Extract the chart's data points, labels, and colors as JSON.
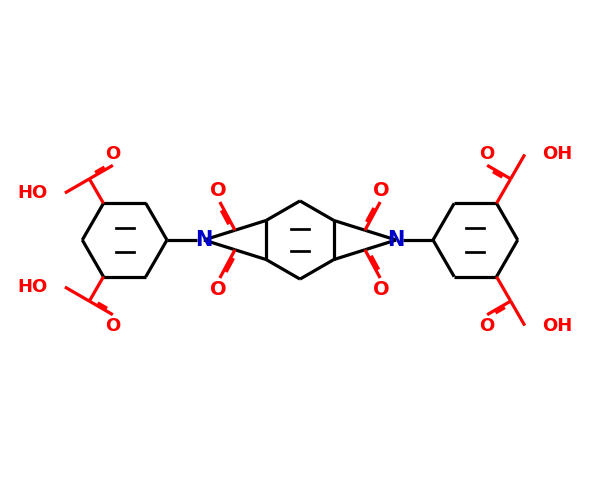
{
  "bg_color": "#ffffff",
  "bond_color": "#000000",
  "red_color": "#ff0000",
  "blue_color": "#0000cc",
  "lw": 2.3,
  "figsize": [
    6.0,
    4.8
  ],
  "dpi": 100,
  "xlim": [
    -5.5,
    5.5
  ],
  "ylim": [
    -2.8,
    2.8
  ]
}
